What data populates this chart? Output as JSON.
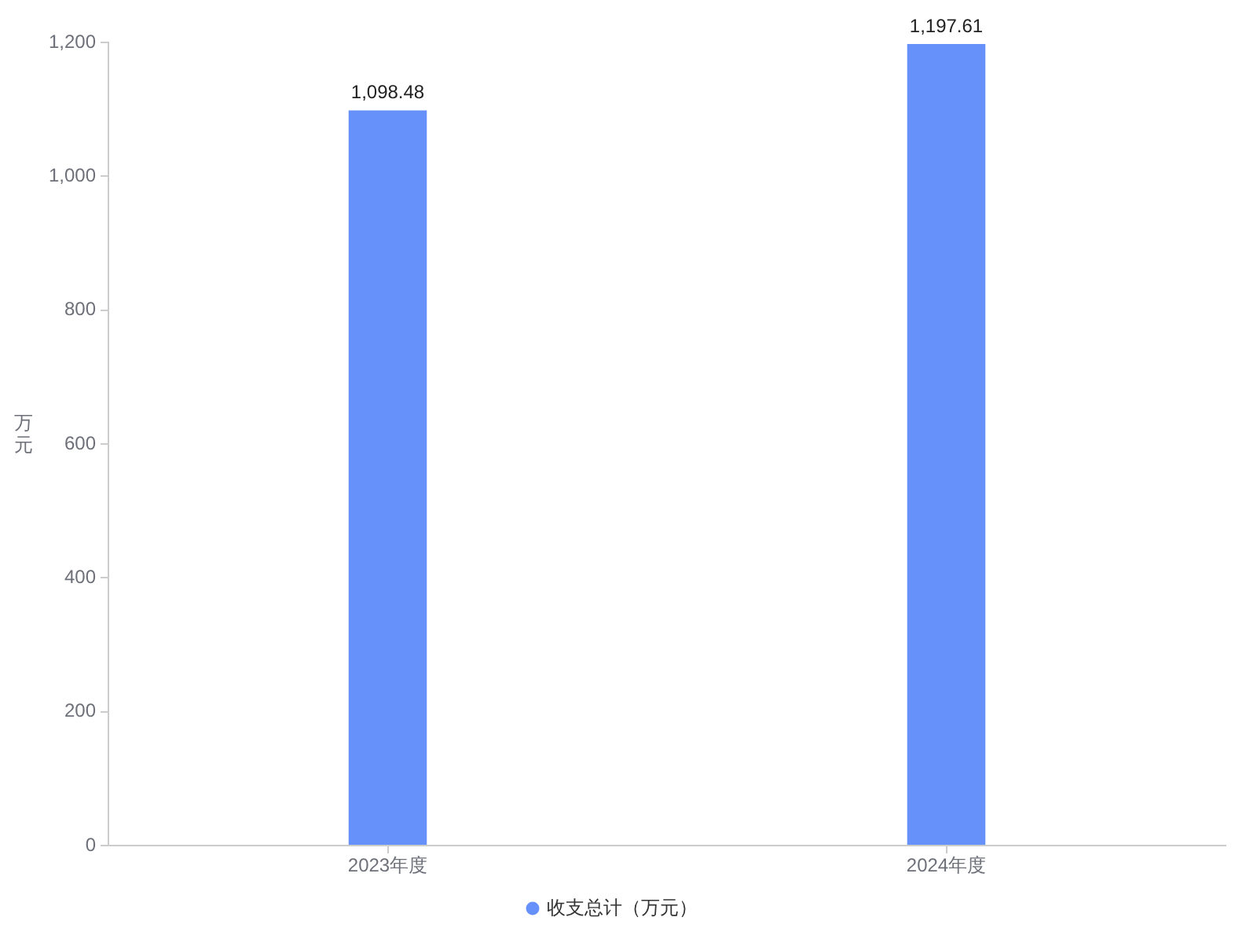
{
  "chart_data": {
    "type": "bar",
    "ylabel": "万元",
    "categories": [
      "2023年度",
      "2024年度"
    ],
    "series": [
      {
        "name": "收支总计（万元）",
        "color": "#6690fa",
        "values": [
          1098.48,
          1197.61
        ],
        "value_labels": [
          "1,098.48",
          "1,197.61"
        ]
      }
    ],
    "ylim": [
      0,
      1200
    ],
    "yticks": [
      0,
      200,
      400,
      600,
      800,
      {
        "value": 1000,
        "label": "1,000"
      },
      {
        "value": 1200,
        "label": "1,200"
      }
    ],
    "legend": "bottom"
  }
}
